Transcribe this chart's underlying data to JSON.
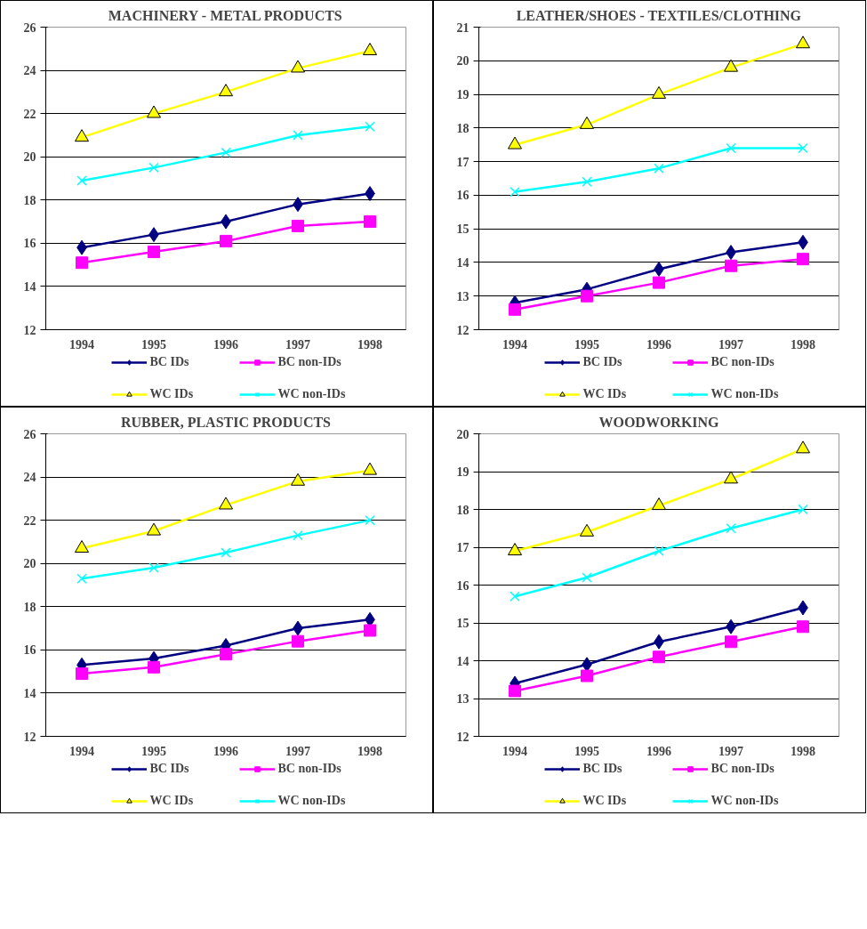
{
  "chart_data": [
    {
      "type": "line",
      "title": "MACHINERY - METAL PRODUCTS",
      "categories": [
        "1994",
        "1995",
        "1996",
        "1997",
        "1998"
      ],
      "ylim": [
        12,
        26
      ],
      "yticks": [
        12,
        14,
        16,
        18,
        20,
        22,
        24,
        26
      ],
      "grid": "y",
      "legend": "bottom",
      "series": [
        {
          "name": "BC IDs",
          "color": "#000080",
          "marker": "diamond",
          "values": [
            15.8,
            16.4,
            17.0,
            17.8,
            18.3
          ]
        },
        {
          "name": "BC non-IDs",
          "color": "#ff00ff",
          "marker": "square",
          "values": [
            15.1,
            15.6,
            16.1,
            16.8,
            17.0
          ]
        },
        {
          "name": "WC IDs",
          "color": "#ffff00",
          "marker": "triangle",
          "values": [
            20.9,
            22.0,
            23.0,
            24.1,
            24.9
          ]
        },
        {
          "name": "WC non-IDs",
          "color": "#00ffff",
          "marker": "cross",
          "values": [
            18.9,
            19.5,
            20.2,
            21.0,
            21.4
          ]
        }
      ]
    },
    {
      "type": "line",
      "title": "LEATHER/SHOES - TEXTILES/CLOTHING",
      "categories": [
        "1994",
        "1995",
        "1996",
        "1997",
        "1998"
      ],
      "ylim": [
        12,
        21
      ],
      "yticks": [
        12,
        13,
        14,
        15,
        16,
        17,
        18,
        19,
        20,
        21
      ],
      "grid": "y",
      "legend": "bottom",
      "series": [
        {
          "name": "BC IDs",
          "color": "#000080",
          "marker": "diamond",
          "values": [
            12.8,
            13.2,
            13.8,
            14.3,
            14.6
          ]
        },
        {
          "name": "BC non-IDs",
          "color": "#ff00ff",
          "marker": "square",
          "values": [
            12.6,
            13.0,
            13.4,
            13.9,
            14.1
          ]
        },
        {
          "name": "WC IDs",
          "color": "#ffff00",
          "marker": "triangle",
          "values": [
            17.5,
            18.1,
            19.0,
            19.8,
            20.5
          ]
        },
        {
          "name": "WC non-IDs",
          "color": "#00ffff",
          "marker": "cross",
          "values": [
            16.1,
            16.4,
            16.8,
            17.4,
            17.4
          ]
        }
      ]
    },
    {
      "type": "line",
      "title": "RUBBER, PLASTIC PRODUCTS",
      "categories": [
        "1994",
        "1995",
        "1996",
        "1997",
        "1998"
      ],
      "ylim": [
        12,
        26
      ],
      "yticks": [
        12,
        14,
        16,
        18,
        20,
        22,
        24,
        26
      ],
      "grid": "y",
      "legend": "bottom",
      "series": [
        {
          "name": "BC IDs",
          "color": "#000080",
          "marker": "diamond",
          "values": [
            15.3,
            15.6,
            16.2,
            17.0,
            17.4
          ]
        },
        {
          "name": "BC non-IDs",
          "color": "#ff00ff",
          "marker": "square",
          "values": [
            14.9,
            15.2,
            15.8,
            16.4,
            16.9
          ]
        },
        {
          "name": "WC IDs",
          "color": "#ffff00",
          "marker": "triangle",
          "values": [
            20.7,
            21.5,
            22.7,
            23.8,
            24.3
          ]
        },
        {
          "name": "WC non-IDs",
          "color": "#00ffff",
          "marker": "cross",
          "values": [
            19.3,
            19.8,
            20.5,
            21.3,
            22.0
          ]
        }
      ]
    },
    {
      "type": "line",
      "title": "WOODWORKING",
      "categories": [
        "1994",
        "1995",
        "1996",
        "1997",
        "1998"
      ],
      "ylim": [
        12,
        20
      ],
      "yticks": [
        12,
        13,
        14,
        15,
        16,
        17,
        18,
        19,
        20
      ],
      "grid": "y",
      "legend": "bottom",
      "series": [
        {
          "name": "BC IDs",
          "color": "#000080",
          "marker": "diamond",
          "values": [
            13.4,
            13.9,
            14.5,
            14.9,
            15.4
          ]
        },
        {
          "name": "BC non-IDs",
          "color": "#ff00ff",
          "marker": "square",
          "values": [
            13.2,
            13.6,
            14.1,
            14.5,
            14.9
          ]
        },
        {
          "name": "WC IDs",
          "color": "#ffff00",
          "marker": "triangle",
          "values": [
            16.9,
            17.4,
            18.1,
            18.8,
            19.6
          ]
        },
        {
          "name": "WC non-IDs",
          "color": "#00ffff",
          "marker": "cross",
          "values": [
            15.7,
            16.2,
            16.9,
            17.5,
            18.0
          ]
        }
      ]
    }
  ]
}
